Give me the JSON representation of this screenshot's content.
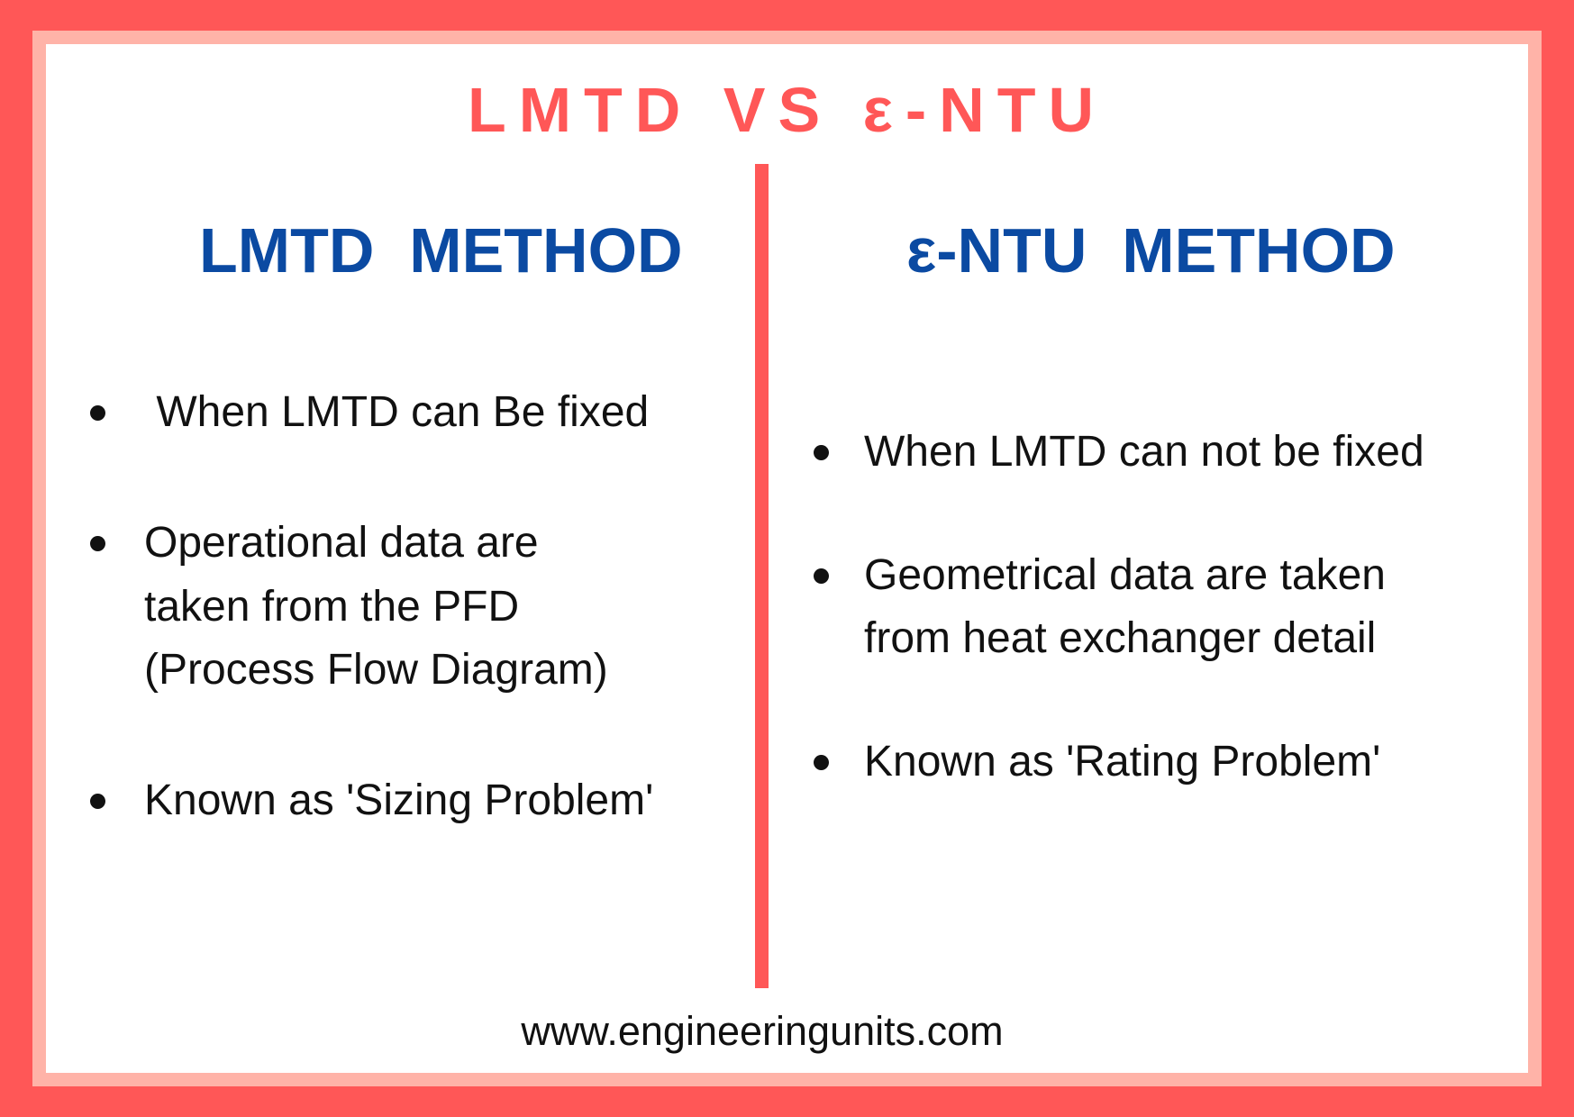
{
  "title": "LMTD VS ε-NTU",
  "colors": {
    "accent": "#ff5757",
    "heading": "#0b4aa2",
    "inner_border": "#ffb3a8"
  },
  "left": {
    "heading": "LMTD  METHOD",
    "items": [
      {
        "lines": [
          " When LMTD can Be fixed"
        ]
      },
      {
        "lines": [
          "Operational data are",
          "taken from the PFD",
          "(Process Flow Diagram)"
        ]
      },
      {
        "lines": [
          "Known as 'Sizing Problem'"
        ]
      }
    ]
  },
  "right": {
    "heading": "ε-NTU  METHOD",
    "items": [
      {
        "lines": [
          "When LMTD can not be fixed"
        ]
      },
      {
        "lines": [
          "Geometrical data are taken",
          "from heat exchanger detail"
        ]
      },
      {
        "lines": [
          "Known as 'Rating Problem'"
        ]
      }
    ]
  },
  "footer": "www.engineeringunits.com"
}
